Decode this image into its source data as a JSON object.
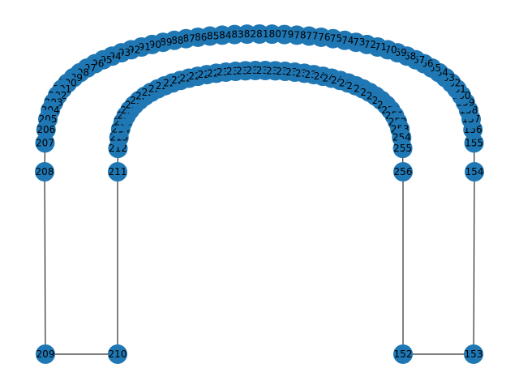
{
  "graph": {
    "node_color": "#1f77b4",
    "edge_color": "#000000",
    "label_color": "#000000",
    "nodes": {
      "outer_arc": [
        "153",
        "154",
        "155",
        "156",
        "157",
        "158",
        "159",
        "160",
        "161",
        "162",
        "163",
        "164",
        "165",
        "166",
        "167",
        "168",
        "169",
        "170",
        "171",
        "172",
        "173",
        "174",
        "175",
        "176",
        "177",
        "178",
        "179",
        "180",
        "181",
        "182",
        "183",
        "184",
        "185",
        "186",
        "187",
        "188",
        "189",
        "190",
        "191",
        "192",
        "193",
        "194",
        "195",
        "196",
        "197",
        "198",
        "199",
        "200",
        "201",
        "202",
        "203",
        "204",
        "205",
        "206",
        "207",
        "208",
        "209"
      ],
      "inner_arc": [
        "210",
        "211",
        "212",
        "213",
        "214",
        "215",
        "216",
        "217",
        "218",
        "219",
        "220",
        "221",
        "222",
        "223",
        "224",
        "225",
        "226",
        "227",
        "228",
        "229",
        "230",
        "231",
        "232",
        "233",
        "234",
        "235",
        "236",
        "237",
        "238",
        "239",
        "240",
        "241",
        "242",
        "243",
        "244",
        "245",
        "246",
        "247",
        "248",
        "249",
        "250",
        "251",
        "252",
        "253",
        "254",
        "255",
        "256",
        "152"
      ]
    },
    "edges": [
      [
        "209",
        "210"
      ],
      [
        "152",
        "153"
      ]
    ]
  }
}
